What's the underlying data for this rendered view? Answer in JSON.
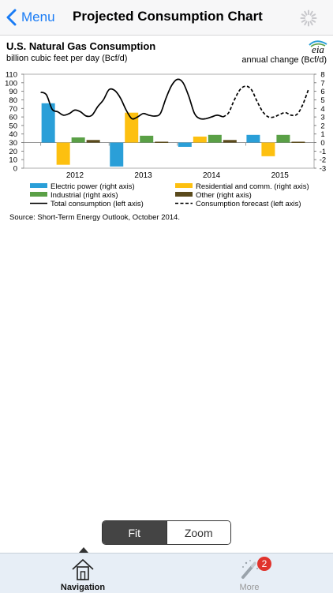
{
  "navbar": {
    "back_label": "Menu",
    "title": "Projected Consumption Chart"
  },
  "chart": {
    "title": "U.S. Natural Gas Consumption",
    "left_unit": "billion cubic feet per day (Bcf/d)",
    "right_unit": "annual change (Bcf/d)",
    "logo_text": "eia",
    "source": "Source: Short-Term Energy Outlook, October 2014."
  },
  "chart_data": {
    "type": "bar",
    "title": "U.S. Natural Gas Consumption",
    "ylabel": "billion cubic feet per day (Bcf/d)",
    "y2label": "annual change (Bcf/d)",
    "ylim": [
      0,
      110
    ],
    "y2lim": [
      -3,
      8
    ],
    "left_ticks": [
      0,
      10,
      20,
      30,
      40,
      50,
      60,
      70,
      80,
      90,
      100,
      110
    ],
    "right_ticks": [
      -3,
      -2,
      -1,
      0,
      1,
      2,
      3,
      4,
      5,
      6,
      7,
      8
    ],
    "categories": [
      "2012",
      "2013",
      "2014",
      "2015"
    ],
    "bar_series": [
      {
        "name": "Electric power (right axis)",
        "color": "#2a9fd8",
        "values": [
          4.6,
          -2.8,
          -0.5,
          0.9
        ]
      },
      {
        "name": "Residential and comm. (right axis)",
        "color": "#fdc010",
        "values": [
          -2.6,
          3.5,
          0.7,
          -1.6
        ]
      },
      {
        "name": "Industrial (right axis)",
        "color": "#5aa046",
        "values": [
          0.6,
          0.8,
          0.9,
          0.9
        ]
      },
      {
        "name": "Other (right axis)",
        "color": "#5a4a1c",
        "values": [
          0.3,
          0.1,
          0.3,
          0.1
        ]
      }
    ],
    "line_series": [
      {
        "name": "Total consumption (left axis)",
        "style": "solid",
        "x": [
          2012.0,
          2012.083,
          2012.167,
          2012.25,
          2012.333,
          2012.417,
          2012.5,
          2012.583,
          2012.667,
          2012.75,
          2012.833,
          2012.917,
          2013.0,
          2013.083,
          2013.167,
          2013.25,
          2013.333,
          2013.417,
          2013.5,
          2013.583,
          2013.667,
          2013.75,
          2013.833,
          2013.917,
          2014.0,
          2014.083,
          2014.167,
          2014.25,
          2014.333,
          2014.417,
          2014.5,
          2014.583,
          2014.667
        ],
        "y": [
          89,
          86,
          69,
          66,
          62,
          64,
          68,
          66,
          61,
          62,
          72,
          80,
          92,
          91,
          82,
          68,
          58,
          60,
          64,
          62,
          61,
          64,
          82,
          97,
          104,
          100,
          84,
          64,
          58,
          58,
          60,
          62,
          60
        ]
      },
      {
        "name": "Consumption forecast (left axis)",
        "style": "dashed",
        "x": [
          2014.667,
          2014.75,
          2014.833,
          2014.917,
          2015.0,
          2015.083,
          2015.167,
          2015.25,
          2015.333,
          2015.417,
          2015.5,
          2015.583,
          2015.667,
          2015.75,
          2015.833,
          2015.917
        ],
        "y": [
          60,
          65,
          80,
          92,
          96,
          92,
          78,
          66,
          60,
          60,
          63,
          65,
          62,
          63,
          74,
          92
        ]
      }
    ],
    "legend_placement": "bottom"
  },
  "segmented": {
    "fit_label": "Fit",
    "zoom_label": "Zoom"
  },
  "tabbar": {
    "navigation_label": "Navigation",
    "more_label": "More",
    "more_badge": "2"
  }
}
